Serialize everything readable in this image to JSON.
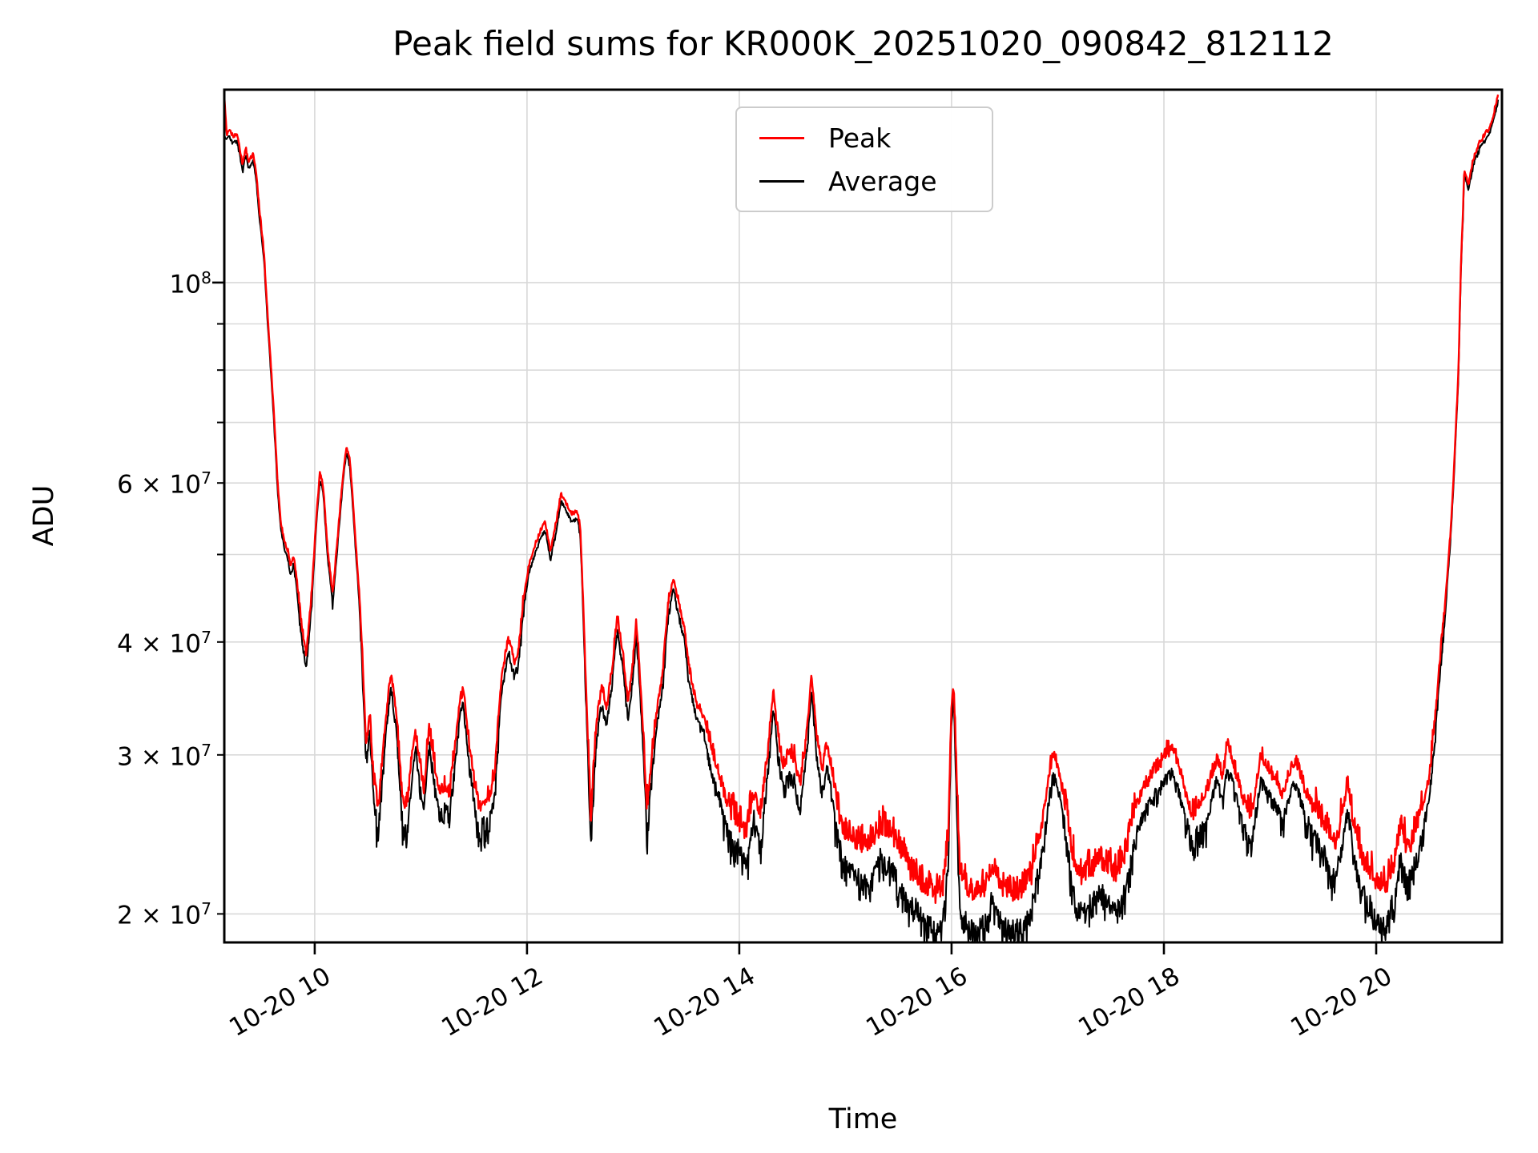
{
  "figure": {
    "title": "Peak field sums for KR000K_20251020_090842_812112",
    "xlabel": "Time",
    "ylabel": "ADU",
    "background": "#ffffff",
    "grid_color": "#d9d9d9"
  },
  "legend": {
    "entries": [
      {
        "label": "Peak",
        "color": "#ff0000"
      },
      {
        "label": "Average",
        "color": "#000000"
      }
    ]
  },
  "chart_data": {
    "type": "line",
    "title": "Peak field sums for KR000K_20251020_090842_812112",
    "xlabel": "Time",
    "ylabel": "ADU",
    "yscale": "log",
    "grid": "both",
    "legend_position": "upper center-left inside axes",
    "x_date": "10-20",
    "x_range_hours": [
      9.148,
      21.185
    ],
    "y_range": [
      18600000,
      163500000
    ],
    "x_ticks": [
      {
        "hours": 10,
        "label": "10-20 10"
      },
      {
        "hours": 12,
        "label": "10-20 12"
      },
      {
        "hours": 14,
        "label": "10-20 14"
      },
      {
        "hours": 16,
        "label": "10-20 16"
      },
      {
        "hours": 18,
        "label": "10-20 18"
      },
      {
        "hours": 20,
        "label": "10-20 20"
      }
    ],
    "y_ticks": [
      {
        "value": 100000000,
        "base": "10",
        "exp": "8"
      },
      {
        "value": 60000000,
        "base": "6 × 10",
        "exp": "7"
      },
      {
        "value": 40000000,
        "base": "4 × 10",
        "exp": "7"
      },
      {
        "value": 30000000,
        "base": "3 × 10",
        "exp": "7"
      },
      {
        "value": 20000000,
        "base": "2 × 10",
        "exp": "7"
      }
    ],
    "y_gridlines": [
      20000000,
      30000000,
      40000000,
      50000000,
      60000000,
      70000000,
      80000000,
      90000000,
      100000000
    ],
    "values_unit": 1000000,
    "x_hours": [
      9.145,
      9.17,
      9.2,
      9.23,
      9.27,
      9.32,
      9.35,
      9.38,
      9.42,
      9.45,
      9.48,
      9.52,
      9.55,
      9.58,
      9.62,
      9.65,
      9.68,
      9.72,
      9.75,
      9.77,
      9.8,
      9.83,
      9.87,
      9.92,
      9.97,
      10.02,
      10.05,
      10.08,
      10.12,
      10.17,
      10.22,
      10.27,
      10.3,
      10.33,
      10.38,
      10.43,
      10.48,
      10.52,
      10.55,
      10.6,
      10.67,
      10.72,
      10.77,
      10.82,
      10.87,
      10.92,
      10.95,
      11.0,
      11.03,
      11.08,
      11.13,
      11.18,
      11.23,
      11.27,
      11.32,
      11.37,
      11.4,
      11.45,
      11.5,
      11.55,
      11.6,
      11.65,
      11.7,
      11.75,
      11.8,
      11.83,
      11.88,
      11.92,
      11.97,
      12.02,
      12.07,
      12.12,
      12.17,
      12.22,
      12.27,
      12.32,
      12.37,
      12.42,
      12.47,
      12.5,
      12.55,
      12.6,
      12.65,
      12.7,
      12.75,
      12.8,
      12.85,
      12.9,
      12.95,
      13.0,
      13.03,
      13.08,
      13.13,
      13.18,
      13.23,
      13.28,
      13.33,
      13.38,
      13.43,
      13.48,
      13.53,
      13.6,
      13.67,
      13.73,
      13.8,
      13.87,
      13.93,
      14.0,
      14.07,
      14.13,
      14.2,
      14.27,
      14.32,
      14.37,
      14.42,
      14.47,
      14.52,
      14.57,
      14.63,
      14.68,
      14.73,
      14.78,
      14.83,
      14.88,
      14.93,
      15.0,
      15.08,
      15.17,
      15.25,
      15.33,
      15.42,
      15.5,
      15.58,
      15.67,
      15.75,
      15.83,
      15.92,
      15.97,
      16.0,
      16.02,
      16.05,
      16.08,
      16.17,
      16.25,
      16.33,
      16.38,
      16.43,
      16.5,
      16.58,
      16.67,
      16.75,
      16.83,
      16.9,
      16.95,
      17.0,
      17.07,
      17.13,
      17.18,
      17.25,
      17.33,
      17.4,
      17.47,
      17.53,
      17.6,
      17.67,
      17.73,
      17.8,
      17.87,
      17.93,
      18.0,
      18.07,
      18.13,
      18.2,
      18.27,
      18.33,
      18.4,
      18.45,
      18.5,
      18.55,
      18.6,
      18.67,
      18.72,
      18.78,
      18.83,
      18.88,
      18.92,
      18.97,
      19.02,
      19.07,
      19.12,
      19.17,
      19.22,
      19.27,
      19.33,
      19.4,
      19.45,
      19.52,
      19.57,
      19.62,
      19.67,
      19.73,
      19.78,
      19.83,
      19.9,
      19.97,
      20.03,
      20.1,
      20.17,
      20.23,
      20.3,
      20.37,
      20.43,
      20.5,
      20.55,
      20.6,
      20.65,
      20.7,
      20.73,
      20.77,
      20.78,
      20.8,
      20.82,
      20.83,
      20.87,
      20.9,
      20.93,
      20.97,
      21.02,
      21.07,
      21.1,
      21.13,
      21.15
    ],
    "series": [
      {
        "name": "Peak",
        "color": "#ff0000",
        "values": [
          163,
          145.5,
          147.5,
          144.5,
          145.5,
          134.5,
          140.5,
          135.5,
          138.5,
          131.5,
          119.5,
          108,
          94,
          83,
          70,
          59.8,
          54.2,
          51.2,
          50.2,
          48.3,
          49.8,
          46.9,
          41.9,
          38.4,
          44.9,
          55.6,
          61.6,
          59.1,
          50.7,
          44.9,
          52.6,
          61.6,
          65.7,
          63.7,
          52.6,
          42.9,
          30.8,
          32.8,
          28.3,
          25.9,
          32.8,
          36.8,
          32.8,
          26.9,
          25.9,
          29.9,
          31.5,
          28.4,
          27.2,
          32.1,
          28.9,
          26.9,
          27.4,
          26.9,
          30.3,
          34.3,
          35.2,
          30.8,
          27.9,
          25.9,
          26.4,
          26.9,
          28.4,
          35.3,
          38.8,
          40.1,
          37.8,
          38.8,
          44.8,
          48.7,
          50.7,
          52.7,
          54.2,
          50.2,
          53.7,
          58.2,
          56.7,
          55.2,
          55.7,
          53.7,
          36.9,
          25,
          31.9,
          35.4,
          33.6,
          36.9,
          42.4,
          38.9,
          33.9,
          37.9,
          41.9,
          33.9,
          25.7,
          29.9,
          33.9,
          36.9,
          43.9,
          46.9,
          43.9,
          41.4,
          36.9,
          33.9,
          32.9,
          30.4,
          28.5,
          26.5,
          25.5,
          25,
          24.1,
          27,
          25.6,
          29.9,
          34.9,
          30.9,
          28.8,
          30,
          29.5,
          27.3,
          31,
          36.4,
          31,
          28.6,
          30.5,
          28.1,
          25.7,
          24.2,
          23.7,
          23.2,
          23.7,
          24.7,
          24.2,
          23.2,
          22.2,
          21.7,
          21,
          20.7,
          21.2,
          24.2,
          33.9,
          35.5,
          27.1,
          21.7,
          20.7,
          20.7,
          21.2,
          22.2,
          21.7,
          20.9,
          20.7,
          20.9,
          21.7,
          24.2,
          27.1,
          29.8,
          29,
          26.1,
          23.2,
          21.9,
          21.7,
          22.2,
          22.7,
          22.2,
          21.9,
          22.2,
          23.7,
          26.1,
          27.1,
          28.1,
          28.6,
          29.5,
          30.2,
          29,
          27.1,
          25.4,
          26.1,
          26.9,
          28.1,
          29.5,
          27.9,
          30.8,
          28.6,
          27.1,
          26.1,
          25.4,
          28.1,
          29.7,
          28.6,
          28.3,
          27.6,
          26.7,
          28.1,
          29.2,
          28.9,
          27.1,
          26.1,
          25.5,
          24.7,
          24,
          23.5,
          25.2,
          27.6,
          25.2,
          23.7,
          22.2,
          21.7,
          21,
          21.2,
          22.2,
          24.7,
          23.2,
          24.2,
          25.9,
          28.1,
          32,
          37.9,
          43.9,
          52.7,
          60.7,
          76.8,
          83.8,
          106,
          121,
          133,
          128,
          134,
          138,
          142,
          145,
          148,
          152,
          157,
          162
        ]
      },
      {
        "name": "Average",
        "color": "#000000",
        "values": [
          147,
          144,
          146,
          143,
          144,
          133,
          139,
          134,
          137,
          130,
          118,
          107,
          93,
          82,
          69,
          59,
          53.5,
          50.5,
          49.5,
          47.5,
          49,
          46,
          41,
          37.5,
          44,
          55,
          61,
          58.5,
          50,
          44,
          52,
          61,
          65,
          63,
          52,
          42,
          30,
          32,
          27.5,
          25,
          32,
          36,
          32,
          26,
          25,
          29,
          30.7,
          27.5,
          26.3,
          31.3,
          28,
          26,
          26.5,
          26,
          29.5,
          33.5,
          34.4,
          30,
          27,
          25,
          25.5,
          26,
          27.5,
          34.5,
          38,
          39.3,
          37,
          38,
          44,
          48,
          50,
          52,
          53.5,
          49.5,
          53,
          57.5,
          56,
          54.5,
          55,
          53,
          36,
          24,
          31,
          34.5,
          32.7,
          36,
          41.5,
          38,
          33,
          37,
          41,
          33,
          24.7,
          29,
          33,
          36,
          43,
          46,
          43,
          40.5,
          36,
          33,
          32,
          29.5,
          27.5,
          25.5,
          24.5,
          24,
          23,
          26,
          24.5,
          29,
          34,
          30,
          27.8,
          29,
          28.5,
          26.2,
          30,
          35.5,
          30,
          27.5,
          29.5,
          27,
          24.5,
          23,
          22.5,
          22,
          22.5,
          23.5,
          23,
          22,
          21,
          20.5,
          19.8,
          19.5,
          20,
          23,
          33,
          34.8,
          26,
          20.5,
          19.5,
          19.5,
          20,
          21,
          20.5,
          19.7,
          19.5,
          19.7,
          20.5,
          23,
          26,
          28.8,
          28,
          25,
          22,
          20.7,
          20.5,
          21,
          21.5,
          21,
          20.7,
          21,
          22.5,
          25,
          26,
          27,
          27.5,
          28.5,
          29.2,
          28,
          26,
          24.2,
          25,
          25.8,
          27,
          28.5,
          26.8,
          29.8,
          27.5,
          26,
          25,
          24.2,
          27,
          28.7,
          27.5,
          27.2,
          26.5,
          25.6,
          27,
          28.2,
          27.8,
          26,
          25,
          24.3,
          23.5,
          22.8,
          22.3,
          24,
          26.5,
          24,
          22.5,
          21,
          20.5,
          19.8,
          20,
          21,
          23.5,
          22,
          23,
          24.7,
          27,
          31,
          37,
          43,
          52,
          60,
          76,
          83,
          105,
          120,
          132,
          127,
          133,
          137,
          141,
          144,
          147,
          151,
          156,
          160
        ]
      }
    ],
    "noise": {
      "step_hours": 0.005,
      "seed": 7,
      "amp_tiers": [
        [
          45,
          0.008
        ],
        [
          32,
          0.018
        ],
        [
          26,
          0.03
        ],
        [
          0,
          0.055
        ]
      ]
    }
  }
}
